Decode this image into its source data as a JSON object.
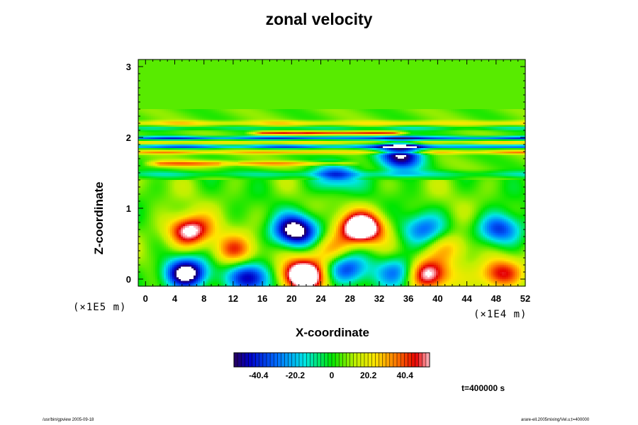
{
  "chart_data": {
    "type": "heatmap",
    "title": "zonal velocity",
    "xlabel": "X-coordinate",
    "ylabel": "Z-coordinate",
    "x_scale_label": "(×1E4 m)",
    "y_scale_label": "(×1E5 m)",
    "xlim": [
      -1,
      52
    ],
    "ylim": [
      -0.1,
      3.1
    ],
    "x_ticks": [
      "0",
      "4",
      "8",
      "12",
      "16",
      "20",
      "24",
      "28",
      "32",
      "36",
      "40",
      "44",
      "48",
      "52"
    ],
    "y_ticks": [
      "0",
      "1",
      "2",
      "3"
    ],
    "colorbar": {
      "range": [
        -54,
        54
      ],
      "tick_labels": [
        "-40.4",
        "-20.2",
        "0",
        "20.2",
        "40.4"
      ],
      "tick_values": [
        -40.4,
        -20.2,
        0,
        20.2,
        40.4
      ]
    },
    "background_value": 6,
    "bands": [
      {
        "z": 2.2,
        "value": 20,
        "width": 0.035
      },
      {
        "z": 2.13,
        "value": -15,
        "width": 0.03
      },
      {
        "z": 2.06,
        "value": 38,
        "width": 0.025,
        "x_range": [
          16,
          34
        ]
      },
      {
        "z": 1.99,
        "value": -45,
        "width": 0.025
      },
      {
        "z": 1.93,
        "value": 18,
        "width": 0.025
      },
      {
        "z": 1.87,
        "value": -42,
        "width": 0.025
      },
      {
        "z": 1.79,
        "value": 26,
        "width": 0.025
      },
      {
        "z": 1.63,
        "value": 30,
        "width": 0.04,
        "x_range": [
          2,
          10
        ]
      },
      {
        "z": 1.63,
        "value": 26,
        "width": 0.03,
        "x_range": [
          13,
          27
        ]
      },
      {
        "z": 1.48,
        "value": -15,
        "width": 0.05
      }
    ],
    "anomalies": [
      {
        "x": 6,
        "z": 0.68,
        "value": 42
      },
      {
        "x": 20.5,
        "z": 0.68,
        "value": -52
      },
      {
        "x": 29.5,
        "z": 0.72,
        "value": 54
      },
      {
        "x": 38,
        "z": 0.7,
        "value": -25
      },
      {
        "x": 48.5,
        "z": 0.7,
        "value": -35
      },
      {
        "x": 5.5,
        "z": 0.08,
        "value": -55
      },
      {
        "x": 21.5,
        "z": 0.05,
        "value": 55
      },
      {
        "x": 14.5,
        "z": 0.02,
        "value": -38
      },
      {
        "x": 38.5,
        "z": 0.07,
        "value": 42
      },
      {
        "x": 48.5,
        "z": 0.08,
        "value": 34
      },
      {
        "x": 27.5,
        "z": 0.15,
        "value": -30
      },
      {
        "x": 35,
        "z": 0.1,
        "value": -30
      },
      {
        "x": 12,
        "z": 0.4,
        "value": 24
      },
      {
        "x": 25,
        "z": 0.4,
        "value": 20
      },
      {
        "x": 42,
        "z": 0.45,
        "value": 18
      },
      {
        "x": 35,
        "z": 1.75,
        "value": -45
      },
      {
        "x": 26,
        "z": 1.45,
        "value": -25
      }
    ],
    "time_label": "t=400000 s"
  },
  "footer": {
    "left": "/usr/bin/gpview 2005-09-18",
    "right": "arare-ell.2005mixing/Vel.u;t=400000"
  }
}
